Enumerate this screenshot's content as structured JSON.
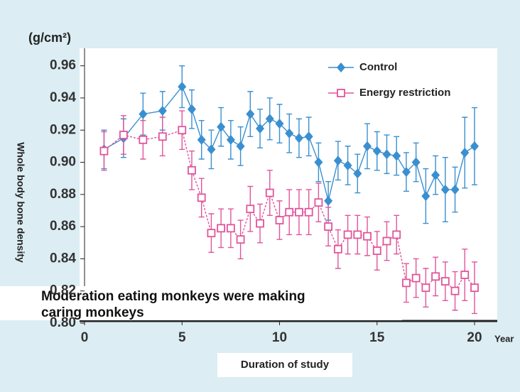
{
  "chart_data": {
    "type": "line",
    "unit_label": "(g/cm²)",
    "y_label": "Whole body bone density",
    "x_label": "Duration of study",
    "x_unit": "Year",
    "annotation": [
      "Moderation eating monkeys were making",
      "caring monkeys"
    ],
    "x": [
      1,
      2,
      3,
      4,
      5,
      5.5,
      6,
      6.5,
      7,
      7.5,
      8,
      8.5,
      9,
      9.5,
      10,
      10.5,
      11,
      11.5,
      12,
      12.5,
      13,
      13.5,
      14,
      14.5,
      15,
      15.5,
      16,
      16.5,
      17,
      17.5,
      18,
      18.5,
      19,
      19.5,
      20
    ],
    "series": [
      {
        "name": "Control",
        "color": "#3a8fd0",
        "marker": "diamond",
        "values": [
          0.908,
          0.915,
          0.93,
          0.932,
          0.947,
          0.933,
          0.914,
          0.908,
          0.922,
          0.914,
          0.91,
          0.93,
          0.921,
          0.927,
          0.924,
          0.918,
          0.915,
          0.916,
          0.9,
          0.876,
          0.901,
          0.898,
          0.893,
          0.91,
          0.907,
          0.905,
          0.904,
          0.894,
          0.9,
          0.879,
          0.892,
          0.883,
          0.883,
          0.906,
          0.91
        ],
        "errors": [
          0.012,
          0.012,
          0.013,
          0.012,
          0.013,
          0.012,
          0.012,
          0.012,
          0.012,
          0.012,
          0.012,
          0.014,
          0.012,
          0.013,
          0.012,
          0.012,
          0.012,
          0.012,
          0.012,
          0.012,
          0.012,
          0.012,
          0.012,
          0.014,
          0.012,
          0.012,
          0.012,
          0.012,
          0.012,
          0.017,
          0.012,
          0.02,
          0.014,
          0.022,
          0.024
        ]
      },
      {
        "name": "Energy restriction",
        "color": "#e0559b",
        "marker": "square",
        "values": [
          0.907,
          0.917,
          0.914,
          0.916,
          0.92,
          0.895,
          0.878,
          0.856,
          0.859,
          0.859,
          0.852,
          0.871,
          0.862,
          0.881,
          0.864,
          0.869,
          0.869,
          0.869,
          0.875,
          0.86,
          0.846,
          0.855,
          0.855,
          0.854,
          0.845,
          0.851,
          0.855,
          0.825,
          0.828,
          0.822,
          0.829,
          0.826,
          0.82,
          0.83,
          0.822
        ],
        "errors": [
          0.012,
          0.012,
          0.012,
          0.012,
          0.012,
          0.012,
          0.012,
          0.012,
          0.012,
          0.012,
          0.012,
          0.014,
          0.012,
          0.014,
          0.012,
          0.014,
          0.014,
          0.014,
          0.012,
          0.012,
          0.012,
          0.012,
          0.012,
          0.012,
          0.012,
          0.012,
          0.012,
          0.012,
          0.012,
          0.012,
          0.012,
          0.012,
          0.012,
          0.016,
          0.016
        ]
      }
    ],
    "xlim": [
      0,
      20
    ],
    "xticks": [
      0,
      5,
      10,
      15,
      20
    ],
    "ylim": [
      0.8,
      0.97
    ],
    "yticks": [
      {
        "value": 0.8,
        "label": "0.80"
      },
      {
        "value": 0.82,
        "label": "0.82"
      },
      0.84,
      0.86,
      0.88,
      {
        "value": 0.9,
        "label": "0.90"
      },
      0.92,
      0.94,
      0.96
    ],
    "legend": "upper right"
  }
}
